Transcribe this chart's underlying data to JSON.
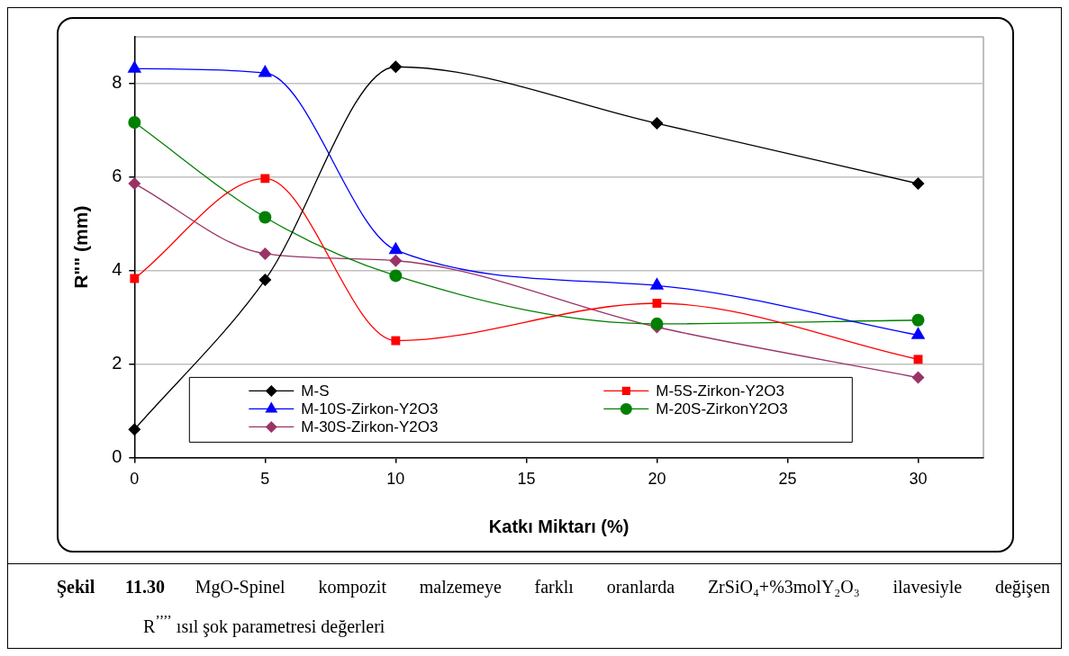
{
  "chart_data": {
    "type": "line",
    "xlabel": "Katkı Miktarı (%)",
    "ylabel": "R\"\" (mm)",
    "x": [
      0,
      5,
      10,
      20,
      30
    ],
    "xlim": [
      0,
      32.5
    ],
    "xticks": [
      0,
      5,
      10,
      15,
      20,
      25,
      30
    ],
    "ylim": [
      0,
      9
    ],
    "yticks": [
      0,
      2,
      4,
      6,
      8
    ],
    "grid": "y",
    "legend": "bottom left",
    "series": [
      {
        "name": "M-S",
        "color": "#000000",
        "marker": "diamond",
        "values": [
          0.6,
          3.8,
          8.36,
          7.15,
          5.86
        ]
      },
      {
        "name": "M-5S-Zirkon-Y2O3",
        "color": "#ff0000",
        "marker": "square",
        "values": [
          3.83,
          5.97,
          2.5,
          3.3,
          2.1
        ]
      },
      {
        "name": "M-10S-Zirkon-Y2O3",
        "color": "#0000ff",
        "marker": "triangle",
        "values": [
          8.32,
          8.23,
          4.44,
          3.68,
          2.62
        ]
      },
      {
        "name": "M-20S-ZirkonY2O3",
        "color": "#008000",
        "marker": "circle",
        "values": [
          7.17,
          5.14,
          3.89,
          2.86,
          2.94
        ]
      },
      {
        "name": "M-30S-Zirkon-Y2O3",
        "color": "#993366",
        "marker": "diamond",
        "values": [
          5.86,
          4.36,
          4.21,
          2.79,
          1.71
        ]
      }
    ],
    "annotations": [
      "Şekil 11.30",
      "MgO-Spinel kompozit malzemeye farklı oranlarda ZrSiO₄+%3molY₂O₃ ilavesiyle değişen",
      "R$^{’’’’}$ ısıl şok parametresi değerleri"
    ]
  }
}
